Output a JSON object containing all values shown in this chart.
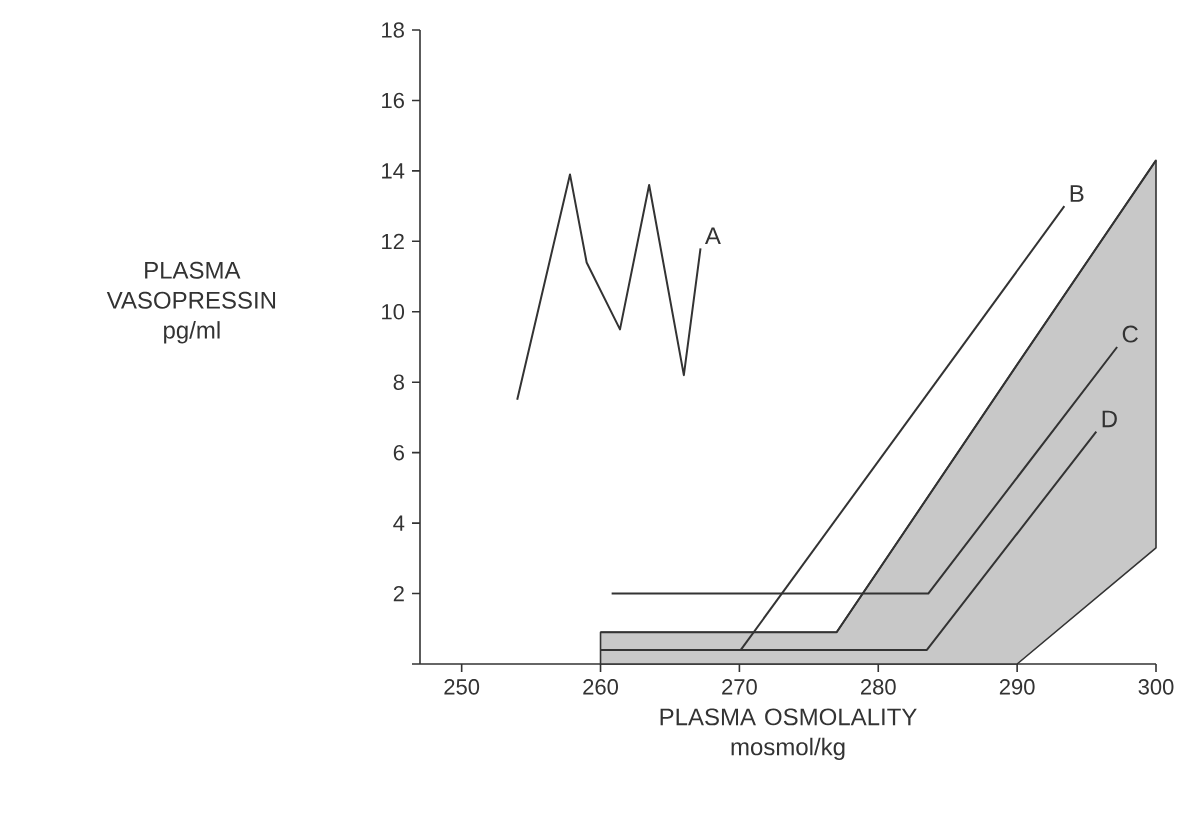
{
  "chart_data": {
    "type": "line",
    "xlabel": "PLASMA OSMOLALITY mosmol/kg",
    "ylabel": "PLASMA VASOPRESSIN pg/ml",
    "xlim": [
      247,
      300
    ],
    "ylim": [
      0,
      18
    ],
    "xticks": [
      250,
      260,
      270,
      280,
      290,
      300
    ],
    "yticks": [
      {
        "value": 0,
        "label": null
      },
      2,
      4,
      6,
      8,
      10,
      12,
      14,
      16,
      18
    ],
    "grid": false,
    "series": [
      {
        "color": "#333333",
        "x": [
          260,
          277,
          290,
          300
        ],
        "values": [
          0.9,
          0.9,
          8.5,
          14.3
        ],
        "lower": [
          0,
          0,
          0,
          3.3
        ],
        "upper": [
          0.9,
          0.9,
          8.5,
          14.3
        ]
      },
      {
        "name": "A",
        "color": "#333333",
        "x": [
          254,
          257.8,
          259,
          261.4,
          263.5,
          266,
          267.2
        ],
        "values": [
          7.5,
          13.9,
          11.4,
          9.5,
          13.6,
          8.2,
          11.8
        ]
      },
      {
        "name": "B",
        "color": "#333333",
        "x": [
          270.1,
          293.4
        ],
        "values": [
          0.4,
          13
        ]
      },
      {
        "name": "C",
        "color": "#333333",
        "x": [
          260.8,
          283.6,
          297.2
        ],
        "values": [
          2,
          2,
          9
        ]
      },
      {
        "name": "D",
        "color": "#333333",
        "x": [
          260,
          283.5,
          295.7
        ],
        "values": [
          0.4,
          0.4,
          6.6
        ]
      }
    ]
  }
}
